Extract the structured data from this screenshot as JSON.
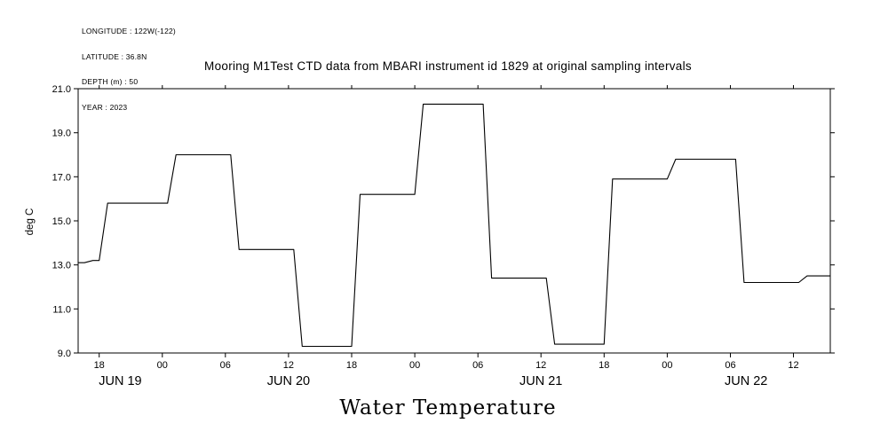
{
  "header_annotations": {
    "lines": [
      "LONGITUDE : 122W(-122)",
      "LATITUDE : 36.8N",
      "DEPTH (m) : 50",
      "YEAR : 2023"
    ]
  },
  "chart_data": {
    "type": "line",
    "subtype": "step",
    "title": "Mooring M1Test CTD data from MBARI instrument id 1829 at original sampling intervals",
    "bottom_title": "Water Temperature",
    "ylabel": "deg C",
    "ylim": [
      9.0,
      21.0
    ],
    "grid": false,
    "legend": "none",
    "line_color": "#000000",
    "background_color": "#ffffff",
    "yticks": [
      {
        "value": 21.0,
        "label": "21.0"
      },
      {
        "value": 19.0,
        "label": "19.0"
      },
      {
        "value": 17.0,
        "label": "17.0"
      },
      {
        "value": 15.0,
        "label": "15.0"
      },
      {
        "value": 13.0,
        "label": "13.0"
      },
      {
        "value": 11.0,
        "label": "11.0"
      },
      {
        "value": 9.0,
        "label": "9.0"
      }
    ],
    "x_axis": {
      "note": "time axis, hour 0 is approx JUN 19 2023 16:00, ticks every 6 hours",
      "range_hours": [
        0,
        71.5
      ],
      "ticks": [
        {
          "hour": 2,
          "label": "18"
        },
        {
          "hour": 8,
          "label": "00"
        },
        {
          "hour": 14,
          "label": "06"
        },
        {
          "hour": 20,
          "label": "12"
        },
        {
          "hour": 26,
          "label": "18"
        },
        {
          "hour": 32,
          "label": "00"
        },
        {
          "hour": 38,
          "label": "06"
        },
        {
          "hour": 44,
          "label": "12"
        },
        {
          "hour": 50,
          "label": "18"
        },
        {
          "hour": 56,
          "label": "00"
        },
        {
          "hour": 62,
          "label": "06"
        },
        {
          "hour": 68,
          "label": "12"
        }
      ],
      "day_labels": [
        {
          "hour": 4,
          "label": "JUN 19"
        },
        {
          "hour": 20,
          "label": "JUN 20"
        },
        {
          "hour": 44,
          "label": "JUN 21"
        },
        {
          "hour": 63.5,
          "label": "JUN 22"
        }
      ]
    },
    "series": [
      {
        "name": "water temperature (deg C)",
        "steps": [
          {
            "start_hour": 0,
            "temp_c": 13.1
          },
          {
            "start_hour": 0.6,
            "temp_c": 13.2
          },
          {
            "start_hour": 2,
            "temp_c": 15.8
          },
          {
            "start_hour": 8.5,
            "temp_c": 18.0
          },
          {
            "start_hour": 14.5,
            "temp_c": 13.7
          },
          {
            "start_hour": 20.5,
            "temp_c": 9.3
          },
          {
            "start_hour": 26,
            "temp_c": 16.2
          },
          {
            "start_hour": 32,
            "temp_c": 20.3
          },
          {
            "start_hour": 38.5,
            "temp_c": 12.4
          },
          {
            "start_hour": 44.5,
            "temp_c": 9.4
          },
          {
            "start_hour": 50,
            "temp_c": 16.9
          },
          {
            "start_hour": 56,
            "temp_c": 17.8
          },
          {
            "start_hour": 62.5,
            "temp_c": 12.2
          },
          {
            "start_hour": 68.5,
            "temp_c": 12.5
          }
        ]
      }
    ]
  }
}
